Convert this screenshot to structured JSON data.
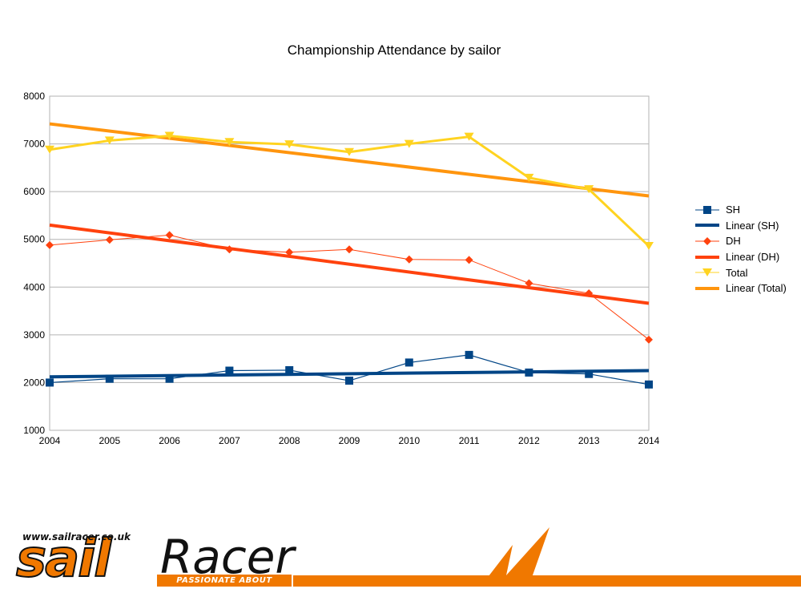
{
  "brand": {
    "url": "www.sailracer.co.uk",
    "logo_part1": "sail",
    "logo_part2": "Racer",
    "tagline": "PASSIONATE ABOUT SAILING",
    "accent_color": "#f07800"
  },
  "chart_data": {
    "type": "line",
    "title": "Championship Attendance by sailor",
    "xlabel": "",
    "ylabel": "",
    "x": [
      2004,
      2005,
      2006,
      2007,
      2008,
      2009,
      2010,
      2011,
      2012,
      2013,
      2014
    ],
    "xlim": [
      2004,
      2014
    ],
    "ylim": [
      1000,
      8000
    ],
    "yticks": [
      1000,
      2000,
      3000,
      4000,
      5000,
      6000,
      7000,
      8000
    ],
    "grid": true,
    "legend_position": "right",
    "series": [
      {
        "name": "SH",
        "marker": "square",
        "color": "#004586",
        "values": [
          2000,
          2080,
          2080,
          2250,
          2260,
          2040,
          2420,
          2580,
          2210,
          2180,
          1960
        ]
      },
      {
        "name": "DH",
        "marker": "diamond",
        "color": "#ff420e",
        "values": [
          4880,
          4990,
          5090,
          4790,
          4730,
          4790,
          4580,
          4570,
          4080,
          3870,
          2900
        ]
      },
      {
        "name": "Total",
        "marker": "triangle-down",
        "color": "#ffd320",
        "values": [
          6880,
          7070,
          7170,
          7040,
          6990,
          6830,
          7000,
          7150,
          6290,
          6050,
          4860
        ]
      }
    ],
    "trendlines": [
      {
        "name": "Linear (SH)",
        "color": "#004586",
        "start": 2120,
        "end": 2250
      },
      {
        "name": "Linear (DH)",
        "color": "#ff420e",
        "start": 5300,
        "end": 3660
      },
      {
        "name": "Linear (Total)",
        "color": "#ff950e",
        "start": 7420,
        "end": 5910
      }
    ],
    "legend_order": [
      "SH",
      "Linear (SH)",
      "DH",
      "Linear (DH)",
      "Total",
      "Linear (Total)"
    ]
  }
}
